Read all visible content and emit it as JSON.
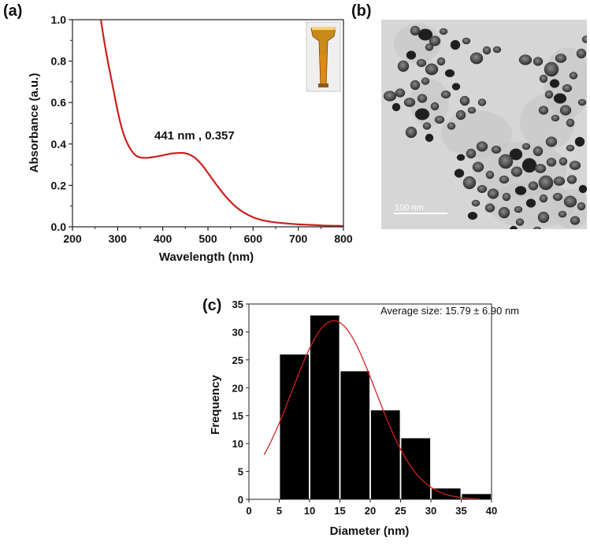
{
  "panels": {
    "a": "(a)",
    "b": "(b)",
    "c": "(c)"
  },
  "chart_data": [
    {
      "type": "line",
      "panel": "(a)",
      "xlabel": "Wavelength (nm)",
      "ylabel": "Absorbance (a.u.)",
      "xlim": [
        200,
        800
      ],
      "ylim": [
        0.0,
        1.0
      ],
      "xticks": [
        "200",
        "300",
        "400",
        "500",
        "600",
        "700",
        "800"
      ],
      "yticks": [
        "0.0",
        "0.2",
        "0.4",
        "0.6",
        "0.8",
        "1.0"
      ],
      "annotation": "441 nm , 0.357",
      "line_color": "#cc1f1f",
      "x": [
        263,
        270,
        280,
        290,
        300,
        310,
        320,
        330,
        340,
        350,
        360,
        370,
        380,
        390,
        400,
        410,
        420,
        430,
        441,
        450,
        460,
        470,
        480,
        490,
        500,
        520,
        540,
        560,
        580,
        600,
        620,
        640,
        660,
        680,
        700,
        720,
        740,
        760,
        780,
        800
      ],
      "y": [
        1.0,
        0.9,
        0.78,
        0.67,
        0.56,
        0.47,
        0.41,
        0.37,
        0.345,
        0.335,
        0.333,
        0.334,
        0.337,
        0.341,
        0.345,
        0.35,
        0.354,
        0.356,
        0.357,
        0.355,
        0.348,
        0.335,
        0.315,
        0.29,
        0.26,
        0.2,
        0.145,
        0.1,
        0.068,
        0.046,
        0.032,
        0.024,
        0.019,
        0.015,
        0.012,
        0.01,
        0.008,
        0.006,
        0.005,
        0.004
      ]
    },
    {
      "type": "bar",
      "panel": "(c)",
      "title": "Average size: 15.79 ± 6.90 nm",
      "xlabel": "Diameter (nm)",
      "ylabel": "Frequency",
      "xlim": [
        0,
        40
      ],
      "ylim": [
        0,
        35
      ],
      "xticks": [
        "0",
        "5",
        "10",
        "15",
        "20",
        "25",
        "30",
        "35",
        "40"
      ],
      "yticks": [
        "0",
        "5",
        "10",
        "15",
        "20",
        "25",
        "30",
        "35"
      ],
      "bin_edges": [
        5,
        10,
        15,
        20,
        25,
        30,
        35,
        40
      ],
      "values": [
        26,
        33,
        23,
        16,
        11,
        2,
        1
      ],
      "bar_color": "#000000",
      "fit": {
        "type": "gaussian",
        "line_color": "#d42020",
        "x_range": [
          2.5,
          38
        ],
        "peak_x": 14,
        "peak_y": 32,
        "sigma": 6.9
      }
    }
  ],
  "tem_image": {
    "scale_bar_label": "100 nm"
  }
}
